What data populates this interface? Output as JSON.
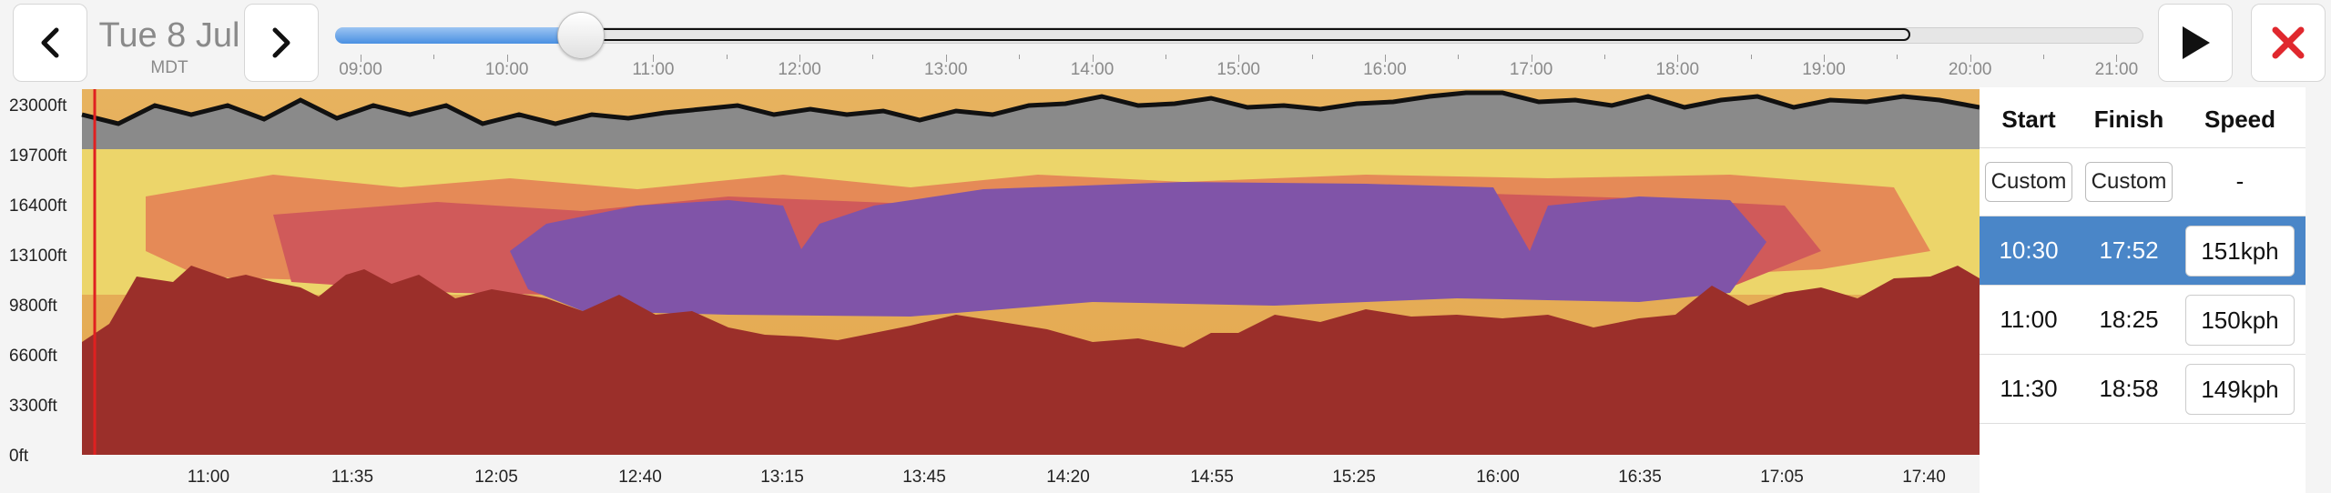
{
  "header": {
    "date": "Tue 8 Jul",
    "timezone": "MDT",
    "prev_icon": "chevron-left-icon",
    "next_icon": "chevron-right-icon",
    "play_icon": "play-icon",
    "close_icon": "close-icon",
    "close_color": "#e0282e"
  },
  "timeline": {
    "ticks": [
      "09:00",
      "10:00",
      "11:00",
      "12:00",
      "13:00",
      "14:00",
      "15:00",
      "16:00",
      "17:00",
      "18:00",
      "19:00",
      "20:00",
      "21:00"
    ],
    "selected_time": "10:00",
    "accent": "#4a90e2"
  },
  "chart": {
    "y_labels": [
      "23000ft",
      "19700ft",
      "16400ft",
      "13100ft",
      "9800ft",
      "6600ft",
      "3300ft",
      "0ft"
    ],
    "x_labels": [
      "11:00",
      "11:35",
      "12:05",
      "12:40",
      "13:15",
      "13:45",
      "14:20",
      "14:55",
      "15:25",
      "16:00",
      "16:35",
      "17:05",
      "17:40"
    ]
  },
  "panel": {
    "headers": {
      "start": "Start",
      "finish": "Finish",
      "speed": "Speed"
    },
    "custom_row": {
      "start": "Custom",
      "finish": "Custom",
      "speed": "-"
    },
    "rows": [
      {
        "start": "10:30",
        "finish": "17:52",
        "speed": "151kph",
        "selected": true
      },
      {
        "start": "11:00",
        "finish": "18:25",
        "speed": "150kph",
        "selected": false
      },
      {
        "start": "11:30",
        "finish": "18:58",
        "speed": "149kph",
        "selected": false
      }
    ],
    "selected_color": "#4a86c8"
  }
}
